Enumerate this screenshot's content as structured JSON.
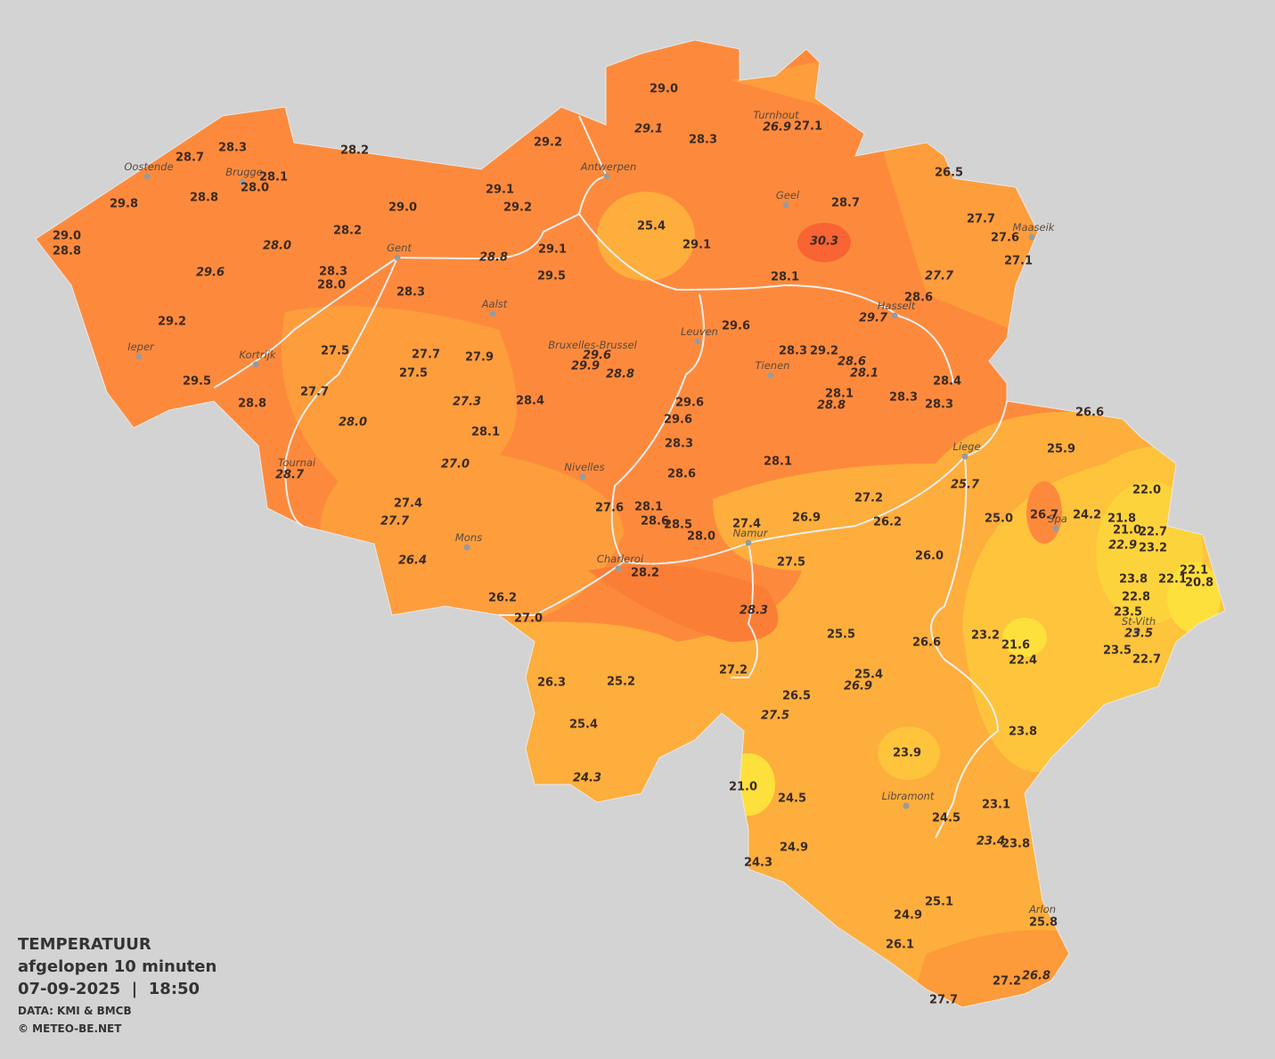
{
  "legend": {
    "title": "TEMPERATUUR",
    "subtitle": "afgelopen 10 minuten",
    "timestamp": "07-09-2025  |  18:50",
    "source": "DATA: KMI & BMCB",
    "credit": "© METEO-BE.NET"
  },
  "cities": [
    "Oostende",
    "Brugge",
    "Antwerpen",
    "Turnhout",
    "Geel",
    "Maaseik",
    "Gent",
    "Aalst",
    "Hasselt",
    "Leuven",
    "Bruxelles-Brussel",
    "Tienen",
    "Ieper",
    "Kortrijk",
    "Liege",
    "Tournai",
    "Nivelles",
    "Spa",
    "Namur",
    "Mons",
    "Charleroi",
    "St-Vith",
    "Libramont",
    "Arlon"
  ],
  "readings": [
    {
      "value": "28.3"
    },
    {
      "value": "28.7"
    },
    {
      "value": "28.2"
    },
    {
      "value": "29.2"
    },
    {
      "value": "29.0"
    },
    {
      "value": "29.1",
      "italic": true
    },
    {
      "value": "28.3"
    },
    {
      "value": "26.9",
      "italic": true
    },
    {
      "value": "27.1"
    },
    {
      "value": "28.1"
    },
    {
      "value": "28.0"
    },
    {
      "value": "29.8"
    },
    {
      "value": "28.8"
    },
    {
      "value": "29.1"
    },
    {
      "value": "29.2"
    },
    {
      "value": "29.0"
    },
    {
      "value": "26.5"
    },
    {
      "value": "25.4"
    },
    {
      "value": "28.7"
    },
    {
      "value": "29.1"
    },
    {
      "value": "30.3",
      "italic": true
    },
    {
      "value": "27.7"
    },
    {
      "value": "27.6"
    },
    {
      "value": "29.0"
    },
    {
      "value": "28.8"
    },
    {
      "value": "28.2"
    },
    {
      "value": "28.0",
      "italic": true
    },
    {
      "value": "28.8",
      "italic": true
    },
    {
      "value": "29.1"
    },
    {
      "value": "27.1"
    },
    {
      "value": "29.6",
      "italic": true
    },
    {
      "value": "28.3"
    },
    {
      "value": "28.0"
    },
    {
      "value": "29.5"
    },
    {
      "value": "27.7",
      "italic": true
    },
    {
      "value": "28.1"
    },
    {
      "value": "28.3"
    },
    {
      "value": "28.6"
    },
    {
      "value": "29.7",
      "italic": true
    },
    {
      "value": "29.2"
    },
    {
      "value": "29.6"
    },
    {
      "value": "27.5"
    },
    {
      "value": "27.7"
    },
    {
      "value": "27.9"
    },
    {
      "value": "29.6",
      "italic": true
    },
    {
      "value": "28.3"
    },
    {
      "value": "29.2"
    },
    {
      "value": "28.6",
      "italic": true
    },
    {
      "value": "29.9",
      "italic": true
    },
    {
      "value": "27.5"
    },
    {
      "value": "28.8",
      "italic": true
    },
    {
      "value": "28.1",
      "italic": true
    },
    {
      "value": "29.5"
    },
    {
      "value": "28.4"
    },
    {
      "value": "27.7"
    },
    {
      "value": "28.1"
    },
    {
      "value": "28.3"
    },
    {
      "value": "28.8"
    },
    {
      "value": "27.3",
      "italic": true
    },
    {
      "value": "28.4"
    },
    {
      "value": "29.6"
    },
    {
      "value": "28.8",
      "italic": true
    },
    {
      "value": "28.3"
    },
    {
      "value": "26.6"
    },
    {
      "value": "28.0",
      "italic": true
    },
    {
      "value": "29.6"
    },
    {
      "value": "28.1"
    },
    {
      "value": "25.9"
    },
    {
      "value": "28.3"
    },
    {
      "value": "27.0",
      "italic": true
    },
    {
      "value": "28.1"
    },
    {
      "value": "28.7",
      "italic": true
    },
    {
      "value": "28.6"
    },
    {
      "value": "25.7",
      "italic": true
    },
    {
      "value": "22.0"
    },
    {
      "value": "27.2"
    },
    {
      "value": "27.4"
    },
    {
      "value": "27.6"
    },
    {
      "value": "28.1"
    },
    {
      "value": "26.9"
    },
    {
      "value": "26.7"
    },
    {
      "value": "24.2"
    },
    {
      "value": "21.8"
    },
    {
      "value": "25.0"
    },
    {
      "value": "27.7",
      "italic": true
    },
    {
      "value": "28.6"
    },
    {
      "value": "28.5"
    },
    {
      "value": "27.4"
    },
    {
      "value": "26.2"
    },
    {
      "value": "21.0"
    },
    {
      "value": "22.7"
    },
    {
      "value": "28.0"
    },
    {
      "value": "22.9",
      "italic": true
    },
    {
      "value": "23.2"
    },
    {
      "value": "26.4",
      "italic": true
    },
    {
      "value": "27.5"
    },
    {
      "value": "26.0"
    },
    {
      "value": "28.2"
    },
    {
      "value": "22.1"
    },
    {
      "value": "23.8"
    },
    {
      "value": "22.1"
    },
    {
      "value": "20.8"
    },
    {
      "value": "26.2"
    },
    {
      "value": "22.8"
    },
    {
      "value": "27.0"
    },
    {
      "value": "28.3",
      "italic": true
    },
    {
      "value": "23.5"
    },
    {
      "value": "25.5"
    },
    {
      "value": "23.2"
    },
    {
      "value": "23.5",
      "italic": true
    },
    {
      "value": "26.6"
    },
    {
      "value": "21.6"
    },
    {
      "value": "22.4"
    },
    {
      "value": "23.5"
    },
    {
      "value": "22.7"
    },
    {
      "value": "27.2"
    },
    {
      "value": "25.4"
    },
    {
      "value": "26.3"
    },
    {
      "value": "25.2"
    },
    {
      "value": "26.9",
      "italic": true
    },
    {
      "value": "26.5"
    },
    {
      "value": "27.5",
      "italic": true
    },
    {
      "value": "25.4"
    },
    {
      "value": "23.8"
    },
    {
      "value": "23.9"
    },
    {
      "value": "24.3",
      "italic": true
    },
    {
      "value": "21.0"
    },
    {
      "value": "24.5"
    },
    {
      "value": "23.1"
    },
    {
      "value": "24.5"
    },
    {
      "value": "23.4",
      "italic": true
    },
    {
      "value": "23.8"
    },
    {
      "value": "24.9"
    },
    {
      "value": "24.3"
    },
    {
      "value": "25.1"
    },
    {
      "value": "24.9"
    },
    {
      "value": "25.8"
    },
    {
      "value": "26.1"
    },
    {
      "value": "27.2"
    },
    {
      "value": "26.8",
      "italic": true
    },
    {
      "value": "27.7"
    }
  ]
}
